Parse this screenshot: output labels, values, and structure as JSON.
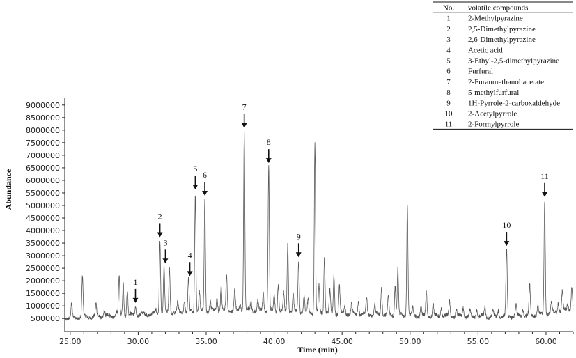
{
  "chart_data": {
    "type": "line",
    "xlabel": "Time (min)",
    "ylabel": "Abundance",
    "xlim": [
      24.6,
      62.0
    ],
    "ylim": [
      200000,
      9300000
    ],
    "x_ticks": [
      "25.00",
      "30.00",
      "35.00",
      "40.00",
      "45.00",
      "50.00",
      "55.00",
      "60.00"
    ],
    "x_tick_values": [
      25,
      30,
      35,
      40,
      45,
      50,
      55,
      60
    ],
    "y_ticks": [
      "500000",
      "1000000",
      "1500000",
      "2000000",
      "2500000",
      "3000000",
      "3500000",
      "4000000",
      "4500000",
      "5000000",
      "5500000",
      "6000000",
      "6500000",
      "7000000",
      "7500000",
      "8000000",
      "8500000",
      "9000000"
    ],
    "y_tick_values": [
      500000,
      1000000,
      1500000,
      2000000,
      2500000,
      3000000,
      3500000,
      4000000,
      4500000,
      5000000,
      5500000,
      6000000,
      6500000,
      7000000,
      7500000,
      8000000,
      8500000,
      9000000
    ],
    "baseline_points": [
      [
        24.7,
        520000
      ],
      [
        26,
        560000
      ],
      [
        28,
        600000
      ],
      [
        30,
        650000
      ],
      [
        32,
        720000
      ],
      [
        34,
        780000
      ],
      [
        36,
        820000
      ],
      [
        38,
        830000
      ],
      [
        40,
        800000
      ],
      [
        42,
        760000
      ],
      [
        44,
        720000
      ],
      [
        46,
        680000
      ],
      [
        48,
        650000
      ],
      [
        50,
        620000
      ],
      [
        52,
        600000
      ],
      [
        54,
        580000
      ],
      [
        56,
        570000
      ],
      [
        58,
        600000
      ],
      [
        60,
        680000
      ],
      [
        62,
        900000
      ]
    ],
    "peaks": [
      [
        25.1,
        1050000
      ],
      [
        25.9,
        2200000
      ],
      [
        26.9,
        1050000
      ],
      [
        27.5,
        820000
      ],
      [
        28.4,
        800000
      ],
      [
        28.6,
        2150000
      ],
      [
        28.9,
        1950000
      ],
      [
        29.2,
        1650000
      ],
      [
        29.8,
        980000
      ],
      [
        31.3,
        800000
      ],
      [
        31.6,
        3600000
      ],
      [
        31.9,
        2550000
      ],
      [
        32.3,
        2550000
      ],
      [
        32.9,
        1100000
      ],
      [
        33.4,
        1250000
      ],
      [
        33.7,
        2050000
      ],
      [
        34.2,
        5500000
      ],
      [
        34.5,
        1550000
      ],
      [
        34.9,
        5250000
      ],
      [
        35.3,
        1200000
      ],
      [
        35.8,
        1350000
      ],
      [
        36.1,
        1800000
      ],
      [
        36.5,
        2200000
      ],
      [
        37.1,
        1650000
      ],
      [
        37.5,
        1100000
      ],
      [
        37.8,
        7950000
      ],
      [
        38.3,
        1200000
      ],
      [
        38.8,
        1250000
      ],
      [
        39.2,
        1550000
      ],
      [
        39.6,
        6550000
      ],
      [
        40.0,
        1450000
      ],
      [
        40.3,
        1850000
      ],
      [
        40.7,
        1500000
      ],
      [
        41.0,
        3500000
      ],
      [
        41.4,
        1450000
      ],
      [
        41.8,
        2800000
      ],
      [
        42.2,
        1400000
      ],
      [
        42.5,
        1250000
      ],
      [
        43.0,
        7500000
      ],
      [
        43.3,
        1800000
      ],
      [
        43.7,
        2950000
      ],
      [
        44.1,
        1600000
      ],
      [
        44.4,
        2250000
      ],
      [
        44.8,
        1800000
      ],
      [
        45.2,
        1000000
      ],
      [
        45.7,
        1100000
      ],
      [
        46.2,
        1200000
      ],
      [
        46.8,
        1300000
      ],
      [
        47.4,
        1050000
      ],
      [
        47.9,
        1750000
      ],
      [
        48.4,
        1350000
      ],
      [
        48.9,
        1850000
      ],
      [
        49.1,
        2500000
      ],
      [
        49.8,
        5050000
      ],
      [
        50.2,
        900000
      ],
      [
        50.8,
        950000
      ],
      [
        51.2,
        1550000
      ],
      [
        51.7,
        1050000
      ],
      [
        52.3,
        950000
      ],
      [
        52.9,
        1200000
      ],
      [
        53.4,
        850000
      ],
      [
        53.9,
        950000
      ],
      [
        54.4,
        800000
      ],
      [
        54.9,
        900000
      ],
      [
        55.5,
        950000
      ],
      [
        56.1,
        800000
      ],
      [
        56.5,
        850000
      ],
      [
        57.1,
        3250000
      ],
      [
        57.8,
        1000000
      ],
      [
        58.3,
        900000
      ],
      [
        58.8,
        1850000
      ],
      [
        59.4,
        1000000
      ],
      [
        59.9,
        5200000
      ],
      [
        60.4,
        1100000
      ],
      [
        60.9,
        1150000
      ],
      [
        61.2,
        1600000
      ],
      [
        61.6,
        1100000
      ],
      [
        61.9,
        1800000
      ]
    ],
    "annotations": [
      {
        "label": "1",
        "x": 29.8
      },
      {
        "label": "2",
        "x": 31.6
      },
      {
        "label": "3",
        "x": 32.0
      },
      {
        "label": "4",
        "x": 33.8
      },
      {
        "label": "5",
        "x": 34.2
      },
      {
        "label": "6",
        "x": 34.9
      },
      {
        "label": "7",
        "x": 37.8
      },
      {
        "label": "8",
        "x": 39.6
      },
      {
        "label": "9",
        "x": 41.8
      },
      {
        "label": "10",
        "x": 57.1
      },
      {
        "label": "11",
        "x": 59.9
      }
    ],
    "legend_table": {
      "header": [
        "No.",
        "volatile compounds"
      ],
      "rows": [
        [
          "1",
          "2-Methylpyrazine"
        ],
        [
          "2",
          "2,5-Dimethylpyrazine"
        ],
        [
          "3",
          "2,6-Dimethylpyrazine"
        ],
        [
          "4",
          "Acetic acid"
        ],
        [
          "5",
          "3-Ethyl-2,5-dimethylpyrazine"
        ],
        [
          "6",
          "Furfural"
        ],
        [
          "7",
          "2-Furanmethanol acetate"
        ],
        [
          "8",
          "5-methylfurfural"
        ],
        [
          "9",
          "1H-Pyrrole-2-carboxaldehyde"
        ],
        [
          "10",
          "2-Acetylpyrrole"
        ],
        [
          "11",
          "2-Formylpyrrole"
        ]
      ]
    },
    "line_color": "#555555"
  }
}
